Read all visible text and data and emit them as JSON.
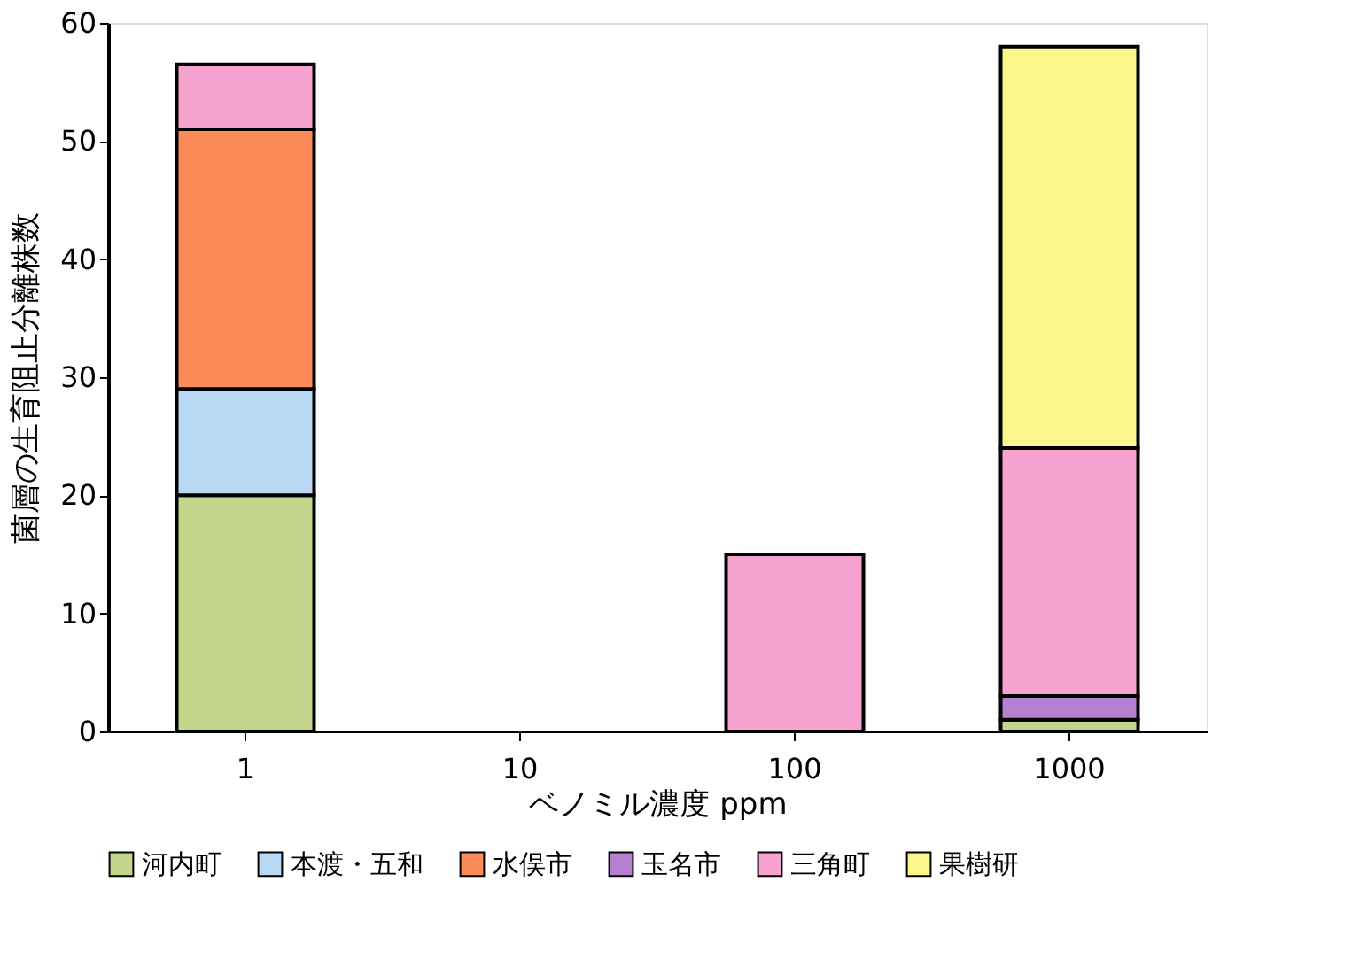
{
  "chart_data": {
    "type": "bar",
    "stacked": true,
    "xlabel": "ベノミル濃度 ppm",
    "ylabel": "菌層の生育阻止分離株数",
    "categories": [
      "1",
      "10",
      "100",
      "1000"
    ],
    "series": [
      {
        "name": "河内町",
        "color": "#c4d68c",
        "values": [
          20,
          null,
          null,
          1
        ]
      },
      {
        "name": "本渡・五和",
        "color": "#b8d8f4",
        "values": [
          9,
          null,
          null,
          null
        ]
      },
      {
        "name": "水俣市",
        "color": "#fb8c5a",
        "values": [
          22,
          null,
          null,
          null
        ]
      },
      {
        "name": "玉名市",
        "color": "#b77fd0",
        "values": [
          null,
          null,
          null,
          2
        ]
      },
      {
        "name": "三角町",
        "color": "#f7a3cf",
        "values": [
          5.5,
          null,
          15,
          21
        ]
      },
      {
        "name": "果樹研",
        "color": "#fbf78a",
        "values": [
          null,
          null,
          null,
          34
        ]
      }
    ],
    "ylim": [
      0,
      60
    ],
    "yticks": [
      0,
      10,
      20,
      30,
      40,
      50,
      60
    ],
    "grid": false,
    "legend": "bottom"
  }
}
